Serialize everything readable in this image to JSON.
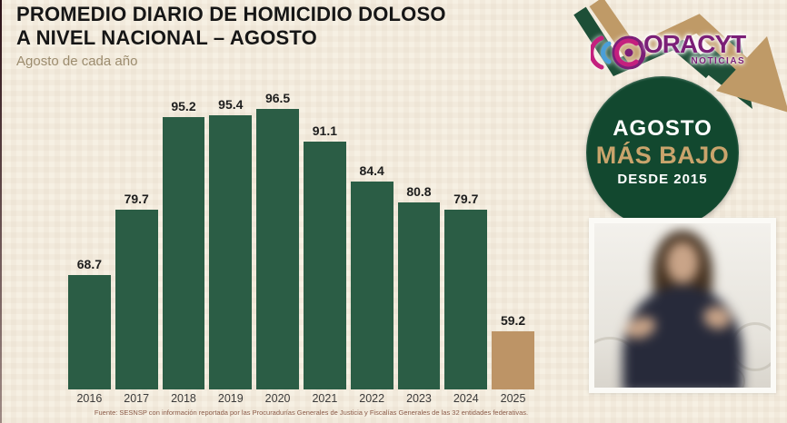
{
  "header": {
    "title_line1": "PROMEDIO DIARIO DE HOMICIDIO DOLOSO",
    "title_line2": "A NIVEL NACIONAL – AGOSTO",
    "subtitle": "Agosto de cada año"
  },
  "logo": {
    "brand": "CORACYT",
    "wordmark_rest": "ORACYT",
    "tagline": "NOTICIAS",
    "purple": "#7b1f77",
    "magenta": "#c4207e",
    "blue": "#4a9fd8"
  },
  "badge": {
    "line1": "AGOSTO",
    "line2": "MÁS BAJO",
    "line3": "DESDE 2015",
    "bg_color": "#12482f",
    "accent_color": "#c9a46c"
  },
  "chart_data": {
    "type": "bar",
    "title": "PROMEDIO DIARIO DE HOMICIDIO DOLOSO A NIVEL NACIONAL – AGOSTO",
    "subtitle": "Agosto de cada año",
    "categories": [
      "2016",
      "2017",
      "2018",
      "2019",
      "2020",
      "2021",
      "2022",
      "2023",
      "2024",
      "2025"
    ],
    "values": [
      68.7,
      79.7,
      95.2,
      95.4,
      96.5,
      91.1,
      84.4,
      80.8,
      79.7,
      59.2
    ],
    "value_labels_shown": true,
    "bar_color": "#2b5d45",
    "highlight_index": 9,
    "highlight_color": "#bd9466",
    "baseline_truncated": true,
    "grid": false,
    "legend": false,
    "source": "Fuente: SESNSP con información reportada por las Procuradurías Generales de Justicia y Fiscalías Generales de las 32 entidades federativas."
  },
  "colors": {
    "background": "#f6f0e3",
    "arrow_tan": "#bf9a67",
    "arrow_green": "#1d4f37"
  }
}
